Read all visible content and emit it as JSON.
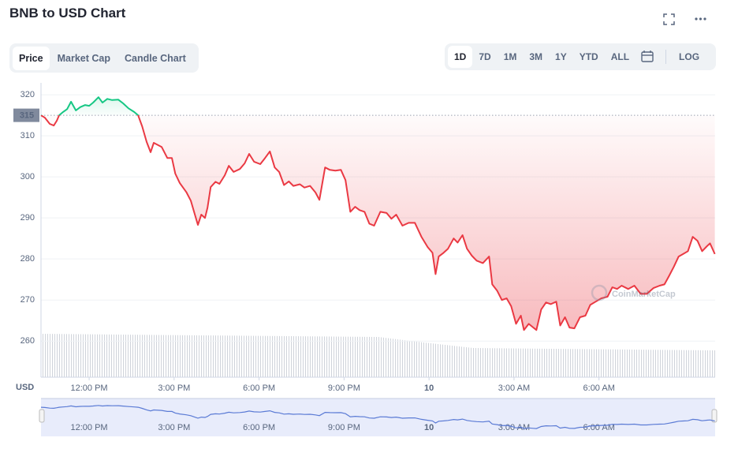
{
  "header": {
    "title": "BNB to USD Chart"
  },
  "tabs": [
    "Price",
    "Market Cap",
    "Candle Chart"
  ],
  "ranges": [
    "1D",
    "7D",
    "1M",
    "3M",
    "1Y",
    "YTD",
    "ALL"
  ],
  "log_button": "LOG",
  "chart_data": {
    "type": "line",
    "y_axis_label": "USD",
    "watermark": "CoinMarketCap",
    "baseline": 315,
    "xlim": [
      -1.7,
      22.1
    ],
    "xticks": [
      {
        "value": 0,
        "label": "12:00 PM"
      },
      {
        "value": 3,
        "label": "3:00 PM"
      },
      {
        "value": 6,
        "label": "6:00 PM"
      },
      {
        "value": 9,
        "label": "9:00 PM"
      },
      {
        "value": 12,
        "label": "10"
      },
      {
        "value": 15,
        "label": "3:00 AM"
      },
      {
        "value": 18,
        "label": "6:00 AM"
      }
    ],
    "ylim": [
      251.2,
      322.9
    ],
    "yticks": [
      260,
      270,
      280,
      290,
      300,
      310,
      320
    ],
    "grid": true,
    "up_color": "#16c784",
    "down_color": "#ea3943",
    "series": [
      {
        "name": "BNB",
        "x": [
          -1.7,
          -1.56,
          -1.39,
          -1.25,
          -1.14,
          -1.06,
          -0.92,
          -0.78,
          -0.64,
          -0.47,
          -0.31,
          -0.14,
          0,
          0.14,
          0.33,
          0.47,
          0.64,
          0.81,
          1.03,
          1.2,
          1.39,
          1.59,
          1.73,
          1.87,
          2.03,
          2.17,
          2.28,
          2.56,
          2.76,
          2.92,
          3.04,
          3.2,
          3.43,
          3.59,
          3.76,
          3.84,
          3.96,
          4.09,
          4.18,
          4.29,
          4.46,
          4.6,
          4.79,
          4.93,
          5.1,
          5.32,
          5.49,
          5.65,
          5.82,
          6.04,
          6.21,
          6.38,
          6.55,
          6.71,
          6.88,
          7.05,
          7.21,
          7.44,
          7.6,
          7.8,
          7.99,
          8.13,
          8.33,
          8.5,
          8.69,
          8.89,
          9.05,
          9.22,
          9.39,
          9.55,
          9.72,
          9.89,
          10.06,
          10.28,
          10.5,
          10.67,
          10.84,
          11.06,
          11.28,
          11.5,
          11.73,
          11.95,
          12.12,
          12.23,
          12.34,
          12.51,
          12.67,
          12.87,
          13.01,
          13.18,
          13.34,
          13.51,
          13.68,
          13.9,
          14.12,
          14.23,
          14.4,
          14.57,
          14.74,
          14.9,
          15.07,
          15.24,
          15.35,
          15.52,
          15.68,
          15.79,
          15.96,
          16.13,
          16.3,
          16.49,
          16.63,
          16.8,
          16.96,
          17.13,
          17.33,
          17.52,
          17.69,
          17.88,
          18.08,
          18.3,
          18.47,
          18.64,
          18.8,
          19.03,
          19.25,
          19.47,
          19.69,
          19.92,
          20.14,
          20.31,
          20.47,
          20.64,
          20.81,
          20.97,
          21.14,
          21.31,
          21.48,
          21.64,
          21.81,
          21.92,
          22.09
        ],
        "values": [
          315.0,
          314.4,
          312.9,
          312.5,
          313.7,
          315.0,
          315.8,
          316.5,
          318.3,
          316.2,
          317.0,
          317.5,
          317.3,
          318.1,
          319.4,
          318.1,
          319.0,
          318.7,
          318.8,
          317.9,
          316.7,
          315.8,
          315.0,
          312.3,
          308.5,
          306.0,
          308.3,
          307.3,
          304.6,
          304.6,
          300.8,
          298.5,
          296.3,
          294.2,
          290.2,
          288.3,
          290.8,
          290.0,
          292.5,
          297.5,
          298.8,
          298.3,
          300.4,
          302.7,
          301.2,
          301.9,
          303.3,
          305.6,
          303.7,
          303.1,
          304.6,
          306.2,
          302.3,
          301.2,
          298.0,
          298.9,
          297.8,
          298.2,
          297.4,
          297.8,
          296.2,
          294.4,
          302.3,
          301.7,
          301.5,
          301.7,
          299.2,
          291.5,
          292.7,
          291.9,
          291.5,
          288.6,
          288.1,
          291.5,
          291.2,
          289.8,
          290.8,
          288.1,
          288.8,
          288.8,
          285.4,
          282.9,
          281.5,
          276.3,
          280.6,
          281.5,
          282.5,
          285.0,
          284.0,
          285.8,
          282.5,
          280.8,
          279.6,
          279.0,
          280.6,
          273.8,
          272.3,
          270.0,
          270.4,
          268.5,
          264.2,
          266.2,
          262.7,
          264.2,
          263.3,
          262.7,
          267.7,
          269.4,
          269.0,
          269.6,
          263.8,
          265.8,
          263.3,
          263.1,
          265.8,
          266.2,
          268.8,
          269.6,
          270.4,
          270.8,
          273.1,
          272.7,
          273.5,
          272.7,
          273.5,
          271.5,
          271.5,
          272.9,
          273.5,
          273.8,
          275.8,
          278.1,
          280.6,
          281.2,
          281.9,
          285.4,
          284.4,
          281.9,
          283.1,
          283.8,
          281.2
        ]
      }
    ]
  }
}
